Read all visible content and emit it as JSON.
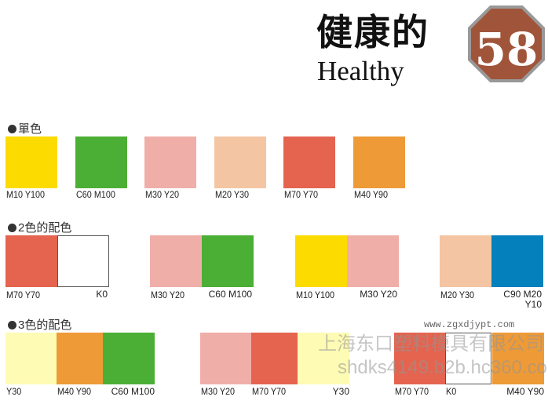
{
  "header": {
    "title": "健康的",
    "subtitle": "Healthy",
    "page_number": "58",
    "badge_color": "#a0553a"
  },
  "sections": {
    "single": {
      "label": "單色",
      "swatches": [
        {
          "color": "#fcdb00",
          "label": "M10  Y100"
        },
        {
          "color": "#4caf35",
          "label": "C60  M100"
        },
        {
          "color": "#f0aea9",
          "label": "M30  Y20"
        },
        {
          "color": "#f4c5a2",
          "label": "M20  Y30"
        },
        {
          "color": "#e4644f",
          "label": "M70  Y70"
        },
        {
          "color": "#ee9a37",
          "label": "M40  Y90"
        }
      ]
    },
    "two": {
      "label": "2色的配色",
      "groups": [
        {
          "colors": [
            "#e4644f",
            "#ffffff"
          ],
          "labels": [
            "M70  Y70",
            "K0"
          ]
        },
        {
          "colors": [
            "#f0aea9",
            "#4caf35"
          ],
          "labels": [
            "M30  Y20",
            "C60  M100"
          ]
        },
        {
          "colors": [
            "#fcdb00",
            "#f0aea9"
          ],
          "labels": [
            "M10  Y100",
            "M30  Y20"
          ]
        },
        {
          "colors": [
            "#f4c5a2",
            "#0480bd"
          ],
          "labels": [
            "M20  Y30",
            "C90  M20 Y10"
          ]
        }
      ]
    },
    "three": {
      "label": "3色的配色",
      "groups": [
        {
          "colors": [
            "#fefbb4",
            "#ee9a37",
            "#4caf35"
          ],
          "labels": [
            "Y30",
            "M40  Y90",
            "C60  M100"
          ]
        },
        {
          "colors": [
            "#f0aea9",
            "#e4644f",
            "#fefbb4"
          ],
          "labels": [
            "M30  Y20",
            "M70  Y70",
            "Y30"
          ]
        },
        {
          "colors": [
            "#e4644f",
            "#ffffff",
            "#ee9a37"
          ],
          "labels": [
            "M70  Y70",
            "K0",
            "M40  Y90"
          ]
        }
      ]
    }
  },
  "watermark": {
    "company": "上海东口塑料模具有限公司",
    "url1": "www.zgxdjypt.com",
    "url2": "shdks4149.b2b.hc360.com"
  }
}
